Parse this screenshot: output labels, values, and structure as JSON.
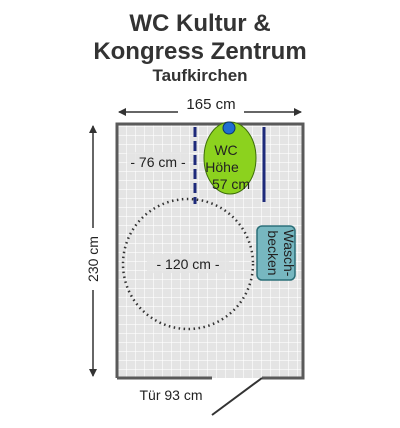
{
  "title": {
    "line1": "WC Kultur &",
    "line2": "Kongress Zentrum",
    "subtitle": "Taufkirchen"
  },
  "dimensions": {
    "width_label": "165 cm",
    "height_label": "230 cm",
    "door_label": "Tür 93 cm"
  },
  "fixtures": {
    "wc_label_line1": "WC",
    "wc_label_line2": "Höhe",
    "wc_label_line3": "57 cm",
    "wc_side_distance": "- 76 cm -",
    "turning_circle": "- 120 cm -",
    "sink_label_line1": "Wasch-",
    "sink_label_line2": "becken"
  },
  "colors": {
    "tile_fill": "#e4e4e4",
    "tile_grid": "#ffffff",
    "wall": "#5a5a5a",
    "wc_fill": "#8cd21e",
    "grab_bar": "#1e2a7a",
    "flush_button": "#1f6fd0",
    "sink_fill": "#77b7c0",
    "sink_stroke": "#2b6f78",
    "circle_dots": "#333333"
  }
}
